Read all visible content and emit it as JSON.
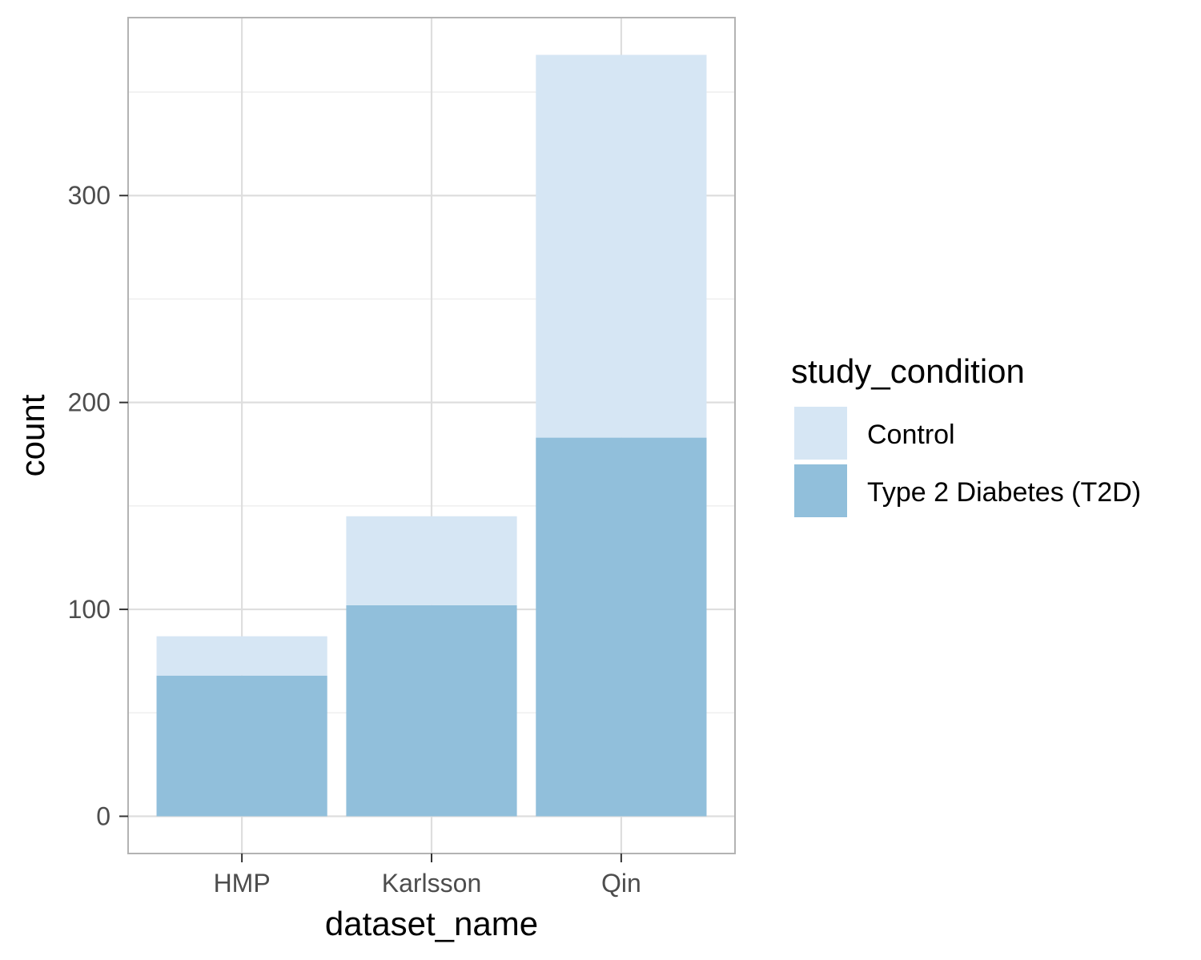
{
  "chart_data": {
    "type": "bar",
    "stacked": true,
    "title": "",
    "xlabel": "dataset_name",
    "ylabel": "count",
    "categories": [
      "HMP",
      "Karlsson",
      "Qin"
    ],
    "series": [
      {
        "name": "Type 2 Diabetes (T2D)",
        "values": [
          68,
          102,
          183
        ],
        "color": "#91bfdb"
      },
      {
        "name": "Control",
        "values": [
          19,
          43,
          185
        ],
        "color": "#d6e6f4"
      }
    ],
    "ylim": [
      -18,
      386
    ],
    "yticks": [
      0,
      100,
      200,
      300
    ],
    "ytick_labels": [
      "0",
      "100",
      "200",
      "300"
    ],
    "grid": true,
    "legend": {
      "title": "study_condition",
      "position": "right",
      "items": [
        {
          "label": "Control",
          "color": "#d6e6f4"
        },
        {
          "label": "Type 2 Diabetes (T2D)",
          "color": "#91bfdb"
        }
      ]
    }
  }
}
